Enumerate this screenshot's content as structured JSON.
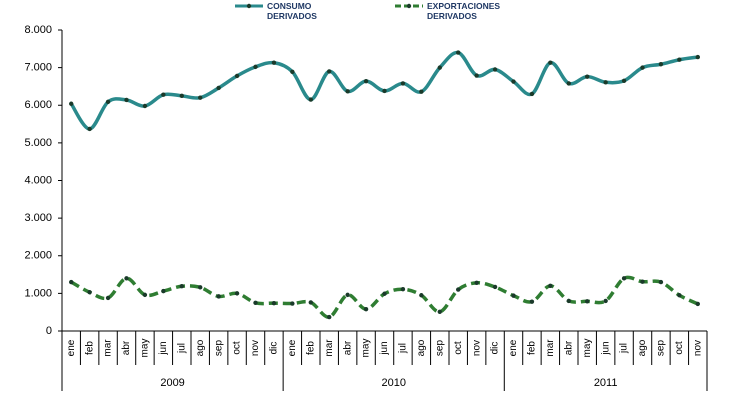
{
  "chart_data": {
    "type": "line",
    "categories": [
      "ene",
      "feb",
      "mar",
      "abr",
      "may",
      "jun",
      "jul",
      "ago",
      "sep",
      "oct",
      "nov",
      "dic",
      "ene",
      "feb",
      "mar",
      "abr",
      "may",
      "jun",
      "jul",
      "ago",
      "sep",
      "oct",
      "nov",
      "dic",
      "ene",
      "feb",
      "mar",
      "abr",
      "may",
      "jun",
      "jul",
      "ago",
      "sep",
      "oct",
      "nov"
    ],
    "groups": [
      "2009",
      "2010",
      "2011"
    ],
    "series": [
      {
        "name": "CONSUMO DERIVADOS",
        "color": "#2a8a8c",
        "line_style": "solid",
        "values": [
          6040,
          5370,
          6090,
          6140,
          5980,
          6280,
          6250,
          6200,
          6460,
          6780,
          7020,
          7130,
          6890,
          6150,
          6900,
          6370,
          6640,
          6380,
          6580,
          6360,
          7000,
          7400,
          6790,
          6950,
          6630,
          6300,
          7130,
          6580,
          6760,
          6610,
          6650,
          7000,
          7090,
          7210,
          7280
        ]
      },
      {
        "name": "EXPORTACIONES DERIVADOS",
        "color": "#2f7d32",
        "line_style": "dashed",
        "values": [
          1300,
          1030,
          880,
          1400,
          960,
          1060,
          1190,
          1160,
          920,
          1000,
          750,
          740,
          730,
          760,
          370,
          960,
          580,
          990,
          1110,
          950,
          510,
          1100,
          1280,
          1170,
          940,
          780,
          1200,
          800,
          790,
          800,
          1400,
          1310,
          1300,
          950,
          720
        ]
      }
    ],
    "ylim": [
      0,
      8000
    ],
    "yticks": [
      0,
      {
        "value": 1000,
        "label": "1.000"
      },
      {
        "value": 2000,
        "label": "2.000"
      },
      {
        "value": 3000,
        "label": "3.000"
      },
      {
        "value": 4000,
        "label": "4.000"
      },
      {
        "value": 5000,
        "label": "5.000"
      },
      {
        "value": 6000,
        "label": "6.000"
      },
      {
        "value": 7000,
        "label": "7.000"
      },
      {
        "value": 8000,
        "label": "8.000"
      }
    ],
    "grid": false
  }
}
